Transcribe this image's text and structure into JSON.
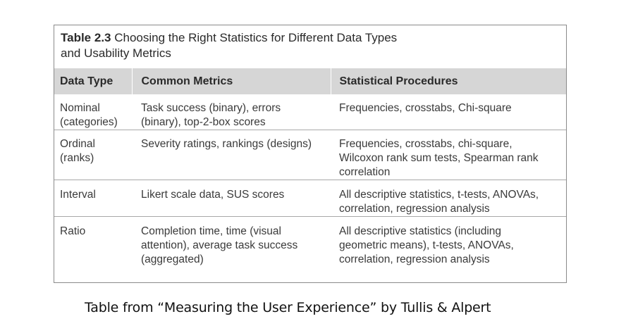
{
  "table": {
    "caption_label": "Table 2.3",
    "caption_text": " Choosing the Right Statistics for Different Data Types",
    "caption_text_line2": "and Usability Metrics",
    "headers": [
      "Data Type",
      "Common Metrics",
      "Statistical Procedures"
    ],
    "rows": [
      {
        "data_type": [
          "Nominal",
          "(categories)"
        ],
        "metrics": [
          "Task success (binary), errors",
          "(binary), top-2-box scores"
        ],
        "procedures": [
          "Frequencies, crosstabs, Chi-square"
        ]
      },
      {
        "data_type": [
          "Ordinal",
          "(ranks)"
        ],
        "metrics": [
          "Severity ratings, rankings (designs)"
        ],
        "procedures": [
          "Frequencies, crosstabs, chi-square,",
          "Wilcoxon rank sum tests, Spearman rank",
          "correlation"
        ]
      },
      {
        "data_type": [
          "Interval"
        ],
        "metrics": [
          "Likert scale data, SUS scores"
        ],
        "procedures": [
          "All descriptive statistics, t-tests, ANOVAs,",
          "correlation, regression analysis"
        ]
      },
      {
        "data_type": [
          "Ratio"
        ],
        "metrics": [
          "Completion time, time (visual",
          "attention), average task success",
          "(aggregated)"
        ],
        "procedures": [
          "All descriptive statistics (including",
          "geometric means), t-tests, ANOVAs,",
          "correlation, regression analysis"
        ]
      }
    ]
  },
  "credit": "Table from “Measuring the User Experience” by Tullis & Alpert"
}
